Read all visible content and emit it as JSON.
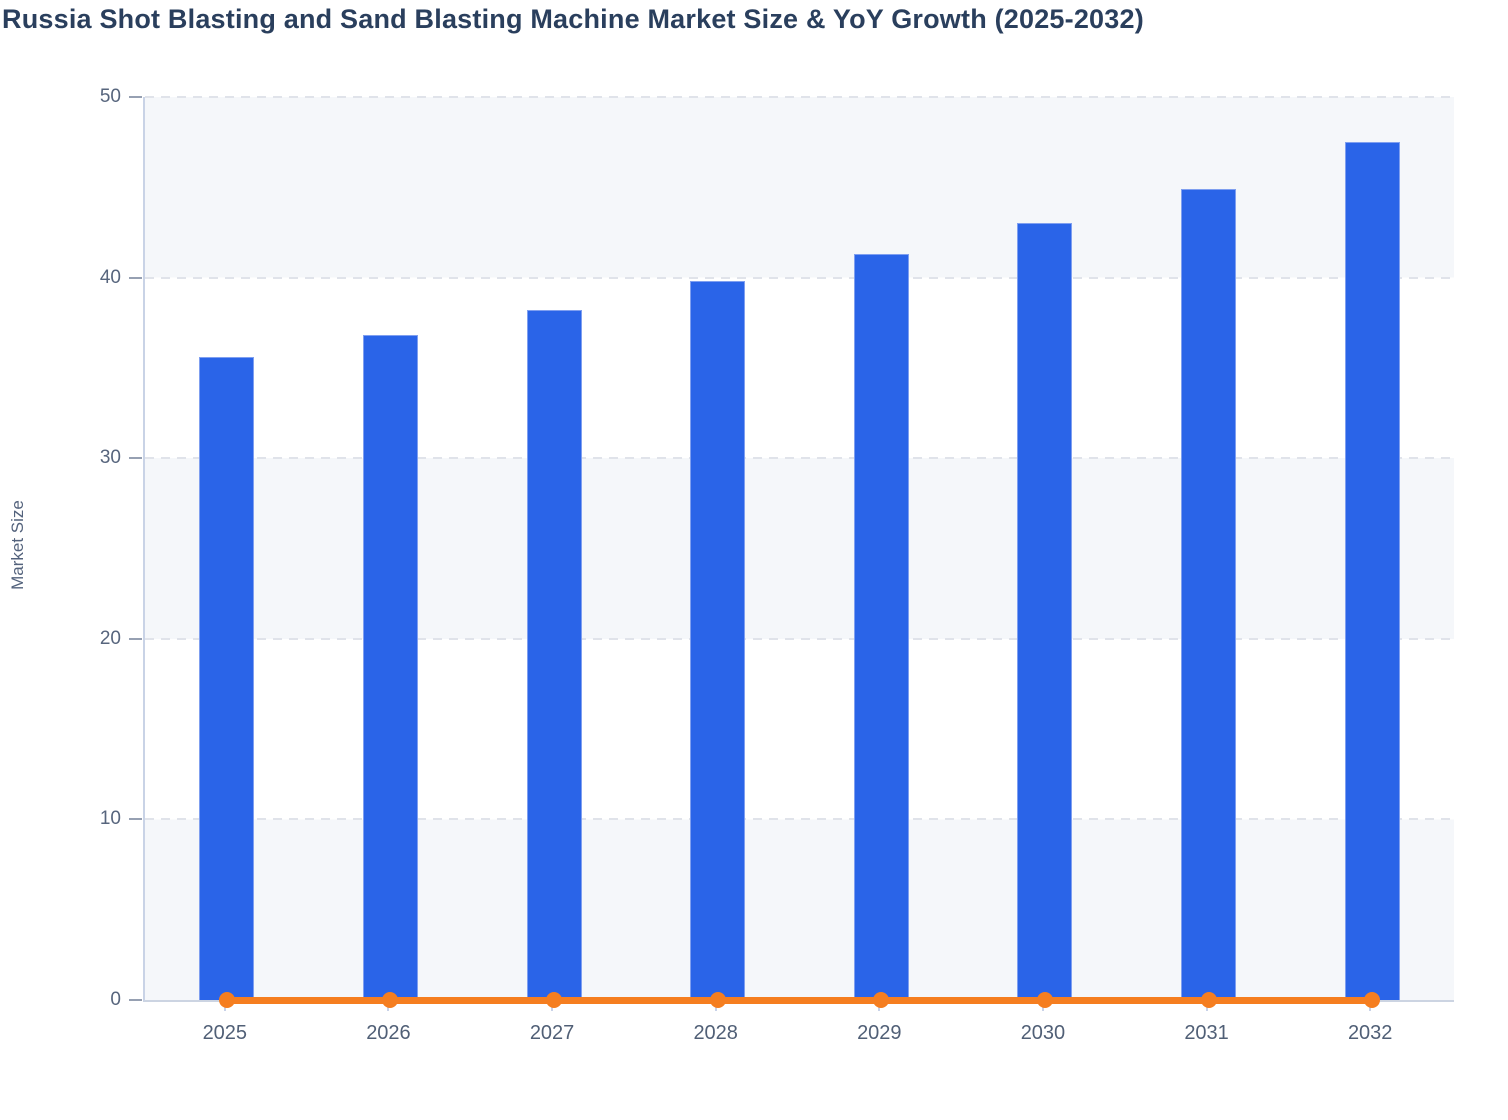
{
  "title": "Russia Shot Blasting and Sand Blasting Machine Market Size & YoY Growth (2025-2032)",
  "colors": {
    "bar_fill": "#2a64e8",
    "bar_edge": "#7f9ff0",
    "line_orange": "#f57e20",
    "title_text": "#2a3f5d",
    "tick_text": "#57657d",
    "axis_line": "#c9d3e6",
    "gridline": "#e0e3ea",
    "band_light": "#f5f7fa"
  },
  "chart_data": {
    "type": "bar",
    "title": "Russia Shot Blasting and Sand Blasting Machine Market Size & YoY Growth (2025-2032)",
    "categories": [
      "2025",
      "2026",
      "2027",
      "2028",
      "2029",
      "2030",
      "2031",
      "2032"
    ],
    "series": [
      {
        "name": "Market Size",
        "type": "bar",
        "color": "#2a64e8",
        "values": [
          35.6,
          36.8,
          38.2,
          39.8,
          41.3,
          43.0,
          44.9,
          47.5
        ]
      },
      {
        "name": "YoY Growth",
        "type": "line",
        "color": "#f57e20",
        "values": [
          0,
          0,
          0,
          0,
          0,
          0,
          0,
          0
        ]
      }
    ],
    "xlabel": "",
    "ylabel": "Market Size",
    "ylim": [
      0,
      50
    ],
    "yticks": [
      0,
      10,
      20,
      30,
      40,
      50
    ],
    "grid": "horizontal-dashed",
    "background_bands": "alternating light stripes every 10 units",
    "legend_position": "none"
  }
}
